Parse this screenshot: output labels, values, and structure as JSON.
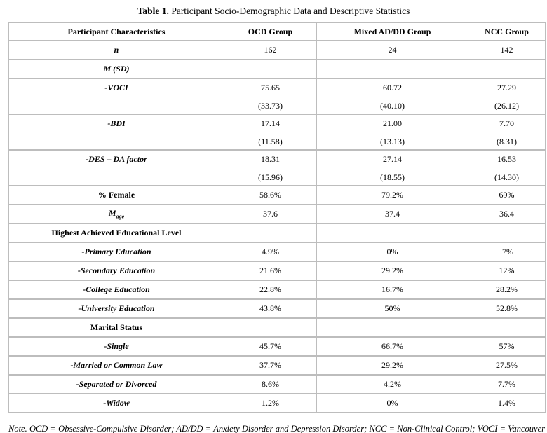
{
  "page": {
    "title_label": "Table 1.",
    "title_text": " Participant Socio-Demographic Data and Descriptive Statistics"
  },
  "table": {
    "headers": [
      "Participant Characteristics",
      "OCD Group",
      "Mixed AD/DD Group",
      "NCC Group"
    ],
    "rows": {
      "n": {
        "label": "n",
        "v": [
          "162",
          "24",
          "142"
        ]
      },
      "msd": {
        "label": "M (SD)"
      },
      "voci": {
        "label": "-VOCI",
        "v": [
          "75.65",
          "60.72",
          "27.29"
        ],
        "sd": [
          "(33.73)",
          "(40.10)",
          "(26.12)"
        ]
      },
      "bdi": {
        "label": "-BDI",
        "v": [
          "17.14",
          "21.00",
          "7.70"
        ],
        "sd": [
          "(11.58)",
          "(13.13)",
          "(8.31)"
        ]
      },
      "des": {
        "label": "-DES – DA factor",
        "v": [
          "18.31",
          "27.14",
          "16.53"
        ],
        "sd": [
          "(15.96)",
          "(18.55)",
          "(14.30)"
        ]
      },
      "female": {
        "label": "% Female",
        "v": [
          "58.6%",
          "79.2%",
          "69%"
        ]
      },
      "mage": {
        "label_main": "M",
        "label_sub": "age",
        "v": [
          "37.6",
          "37.4",
          "36.4"
        ]
      },
      "edu": {
        "label": "Highest Achieved Educational Level"
      },
      "primary": {
        "label": "-Primary Education",
        "v": [
          "4.9%",
          "0%",
          ".7%"
        ]
      },
      "secondary": {
        "label": "-Secondary Education",
        "v": [
          "21.6%",
          "29.2%",
          "12%"
        ]
      },
      "college": {
        "label": "-College Education",
        "v": [
          "22.8%",
          "16.7%",
          "28.2%"
        ]
      },
      "university": {
        "label": "-University Education",
        "v": [
          "43.8%",
          "50%",
          "52.8%"
        ]
      },
      "marital": {
        "label": "Marital Status"
      },
      "single": {
        "label": "-Single",
        "v": [
          "45.7%",
          "66.7%",
          "57%"
        ]
      },
      "married": {
        "label": "-Married or Common Law",
        "v": [
          "37.7%",
          "29.2%",
          "27.5%"
        ]
      },
      "separated": {
        "label": "-Separated or Divorced",
        "v": [
          "8.6%",
          "4.2%",
          "7.7%"
        ]
      },
      "widow": {
        "label": "-Widow",
        "v": [
          "1.2%",
          "0%",
          "1.4%"
        ]
      }
    }
  },
  "note": "Note. OCD = Obsessive-Compulsive Disorder; AD/DD = Anxiety Disorder and Depression Disorder; NCC = Non-Clinical Control; VOCI = Vancouver Obsessional-Compulsive Inventory; BDI = Beck Depression Inventory; DES = Dissociative Experiences Scale; DA = Dissociative Absorption."
}
